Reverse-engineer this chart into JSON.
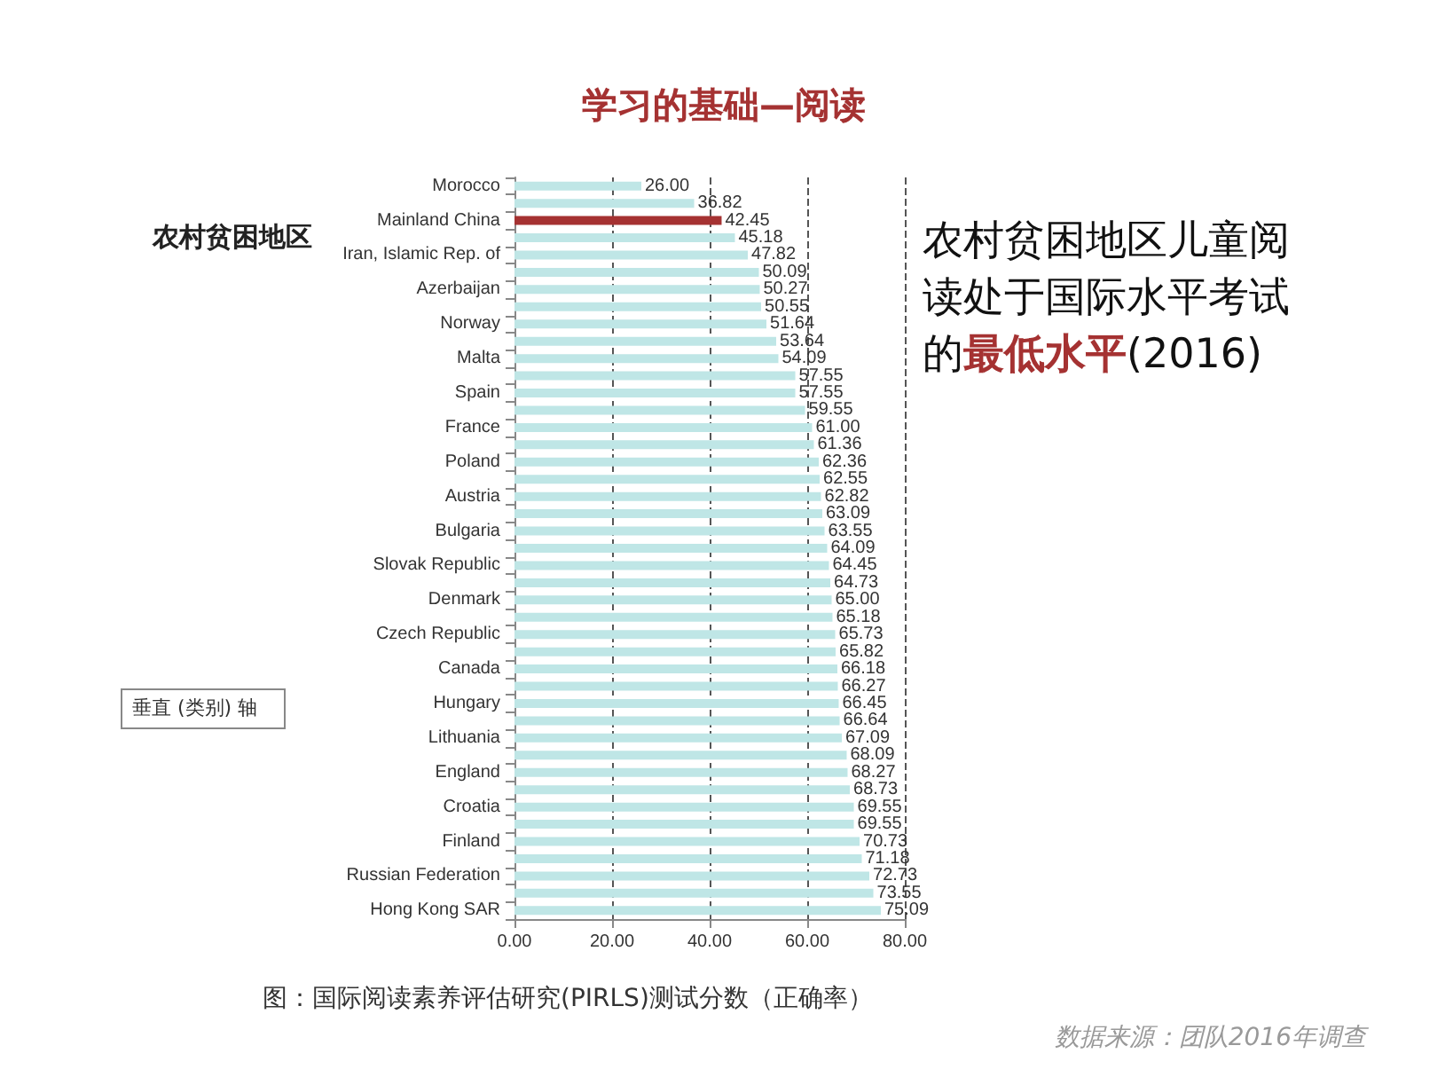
{
  "chart_data": {
    "type": "bar",
    "orientation": "horizontal",
    "title": "学习的基础—阅读",
    "categories": [
      "Morocco",
      null,
      "Mainland China",
      null,
      "Iran, Islamic Rep. of",
      null,
      "Azerbaijan",
      null,
      "Norway",
      null,
      "Malta",
      null,
      "Spain",
      null,
      "France",
      null,
      "Poland",
      null,
      "Austria",
      null,
      "Bulgaria",
      null,
      "Slovak Republic",
      null,
      "Denmark",
      null,
      "Czech Republic",
      null,
      "Canada",
      null,
      "Hungary",
      null,
      "Lithuania",
      null,
      "England",
      null,
      "Croatia",
      null,
      "Finland",
      null,
      "Russian Federation",
      null,
      "Hong Kong SAR"
    ],
    "values": [
      26.0,
      36.82,
      42.45,
      45.18,
      47.82,
      50.09,
      50.27,
      50.55,
      51.64,
      53.64,
      54.09,
      57.55,
      57.55,
      59.55,
      61.0,
      61.36,
      62.36,
      62.55,
      62.82,
      63.09,
      63.55,
      64.09,
      64.45,
      64.73,
      65.0,
      65.18,
      65.73,
      65.82,
      66.18,
      66.27,
      66.45,
      66.64,
      67.09,
      68.09,
      68.27,
      68.73,
      69.55,
      69.55,
      70.73,
      71.18,
      72.73,
      73.55,
      75.09
    ],
    "value_labels": [
      "26.00",
      "36.82",
      "42.45",
      "45.18",
      "47.82",
      "50.09",
      "50.27",
      "50.55",
      "51.64",
      "53.64",
      "54.09",
      "57.55",
      "57.55",
      "59.55",
      "61.00",
      "61.36",
      "62.36",
      "62.55",
      "62.82",
      "63.09",
      "63.55",
      "64.09",
      "64.45",
      "64.73",
      "65.00",
      "65.18",
      "65.73",
      "65.82",
      "66.18",
      "66.27",
      "66.45",
      "66.64",
      "67.09",
      "68.09",
      "68.27",
      "68.73",
      "69.55",
      "69.55",
      "70.73",
      "71.18",
      "72.73",
      "73.55",
      "75.09"
    ],
    "colors": [
      "#bfe6e6",
      "#bfe6e6",
      "#a53232",
      "#bfe6e6",
      "#bfe6e6",
      "#bfe6e6",
      "#bfe6e6",
      "#bfe6e6",
      "#bfe6e6",
      "#bfe6e6",
      "#bfe6e6",
      "#bfe6e6",
      "#bfe6e6",
      "#bfe6e6",
      "#bfe6e6",
      "#bfe6e6",
      "#bfe6e6",
      "#bfe6e6",
      "#bfe6e6",
      "#bfe6e6",
      "#bfe6e6",
      "#bfe6e6",
      "#bfe6e6",
      "#bfe6e6",
      "#bfe6e6",
      "#bfe6e6",
      "#bfe6e6",
      "#bfe6e6",
      "#bfe6e6",
      "#bfe6e6",
      "#bfe6e6",
      "#bfe6e6",
      "#bfe6e6",
      "#bfe6e6",
      "#bfe6e6",
      "#bfe6e6",
      "#bfe6e6",
      "#bfe6e6",
      "#bfe6e6",
      "#bfe6e6",
      "#bfe6e6",
      "#bfe6e6",
      "#bfe6e6"
    ],
    "xlim": [
      0,
      80
    ],
    "xticks": [
      {
        "value": 0,
        "label": "0.00"
      },
      {
        "value": 20,
        "label": "20.00"
      },
      {
        "value": 40,
        "label": "40.00"
      },
      {
        "value": 60,
        "label": "60.00"
      },
      {
        "value": 80,
        "label": "80.00"
      }
    ],
    "grid": "x",
    "annotations": [
      "农村贫困地区",
      "农村贫困地区儿童阅读处于国际水平考试的",
      "最低水平",
      "(2016)",
      "图：国际阅读素养评估研究(PIRLS)测试分数（正确率）",
      "数据来源：团队2016年调查",
      "垂直 (类别) 轴"
    ]
  }
}
